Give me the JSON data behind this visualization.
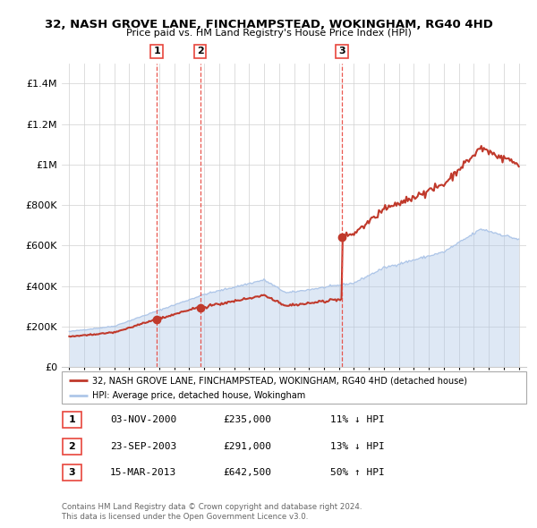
{
  "title": "32, NASH GROVE LANE, FINCHAMPSTEAD, WOKINGHAM, RG40 4HD",
  "subtitle": "Price paid vs. HM Land Registry's House Price Index (HPI)",
  "legend_line1": "32, NASH GROVE LANE, FINCHAMPSTEAD, WOKINGHAM, RG40 4HD (detached house)",
  "legend_line2": "HPI: Average price, detached house, Wokingham",
  "footer1": "Contains HM Land Registry data © Crown copyright and database right 2024.",
  "footer2": "This data is licensed under the Open Government Licence v3.0.",
  "sales": [
    {
      "label": "1",
      "date_str": "03-NOV-2000",
      "date_num": 2000.84,
      "price": 235000,
      "pct": "11% ↓ HPI"
    },
    {
      "label": "2",
      "date_str": "23-SEP-2003",
      "date_num": 2003.73,
      "price": 291000,
      "pct": "13% ↓ HPI"
    },
    {
      "label": "3",
      "date_str": "15-MAR-2013",
      "date_num": 2013.2,
      "price": 642500,
      "pct": "50% ↑ HPI"
    }
  ],
  "hpi_color": "#aec6e8",
  "price_color": "#c0392b",
  "vline_color": "#e8453c",
  "dot_color": "#c0392b",
  "ylim": [
    0,
    1500000
  ],
  "yticks": [
    0,
    200000,
    400000,
    600000,
    800000,
    1000000,
    1200000,
    1400000
  ],
  "ytick_labels": [
    "£0",
    "£200K",
    "£400K",
    "£600K",
    "£800K",
    "£1M",
    "£1.2M",
    "£1.4M"
  ],
  "xlim_start": 1994.5,
  "xlim_end": 2025.5
}
